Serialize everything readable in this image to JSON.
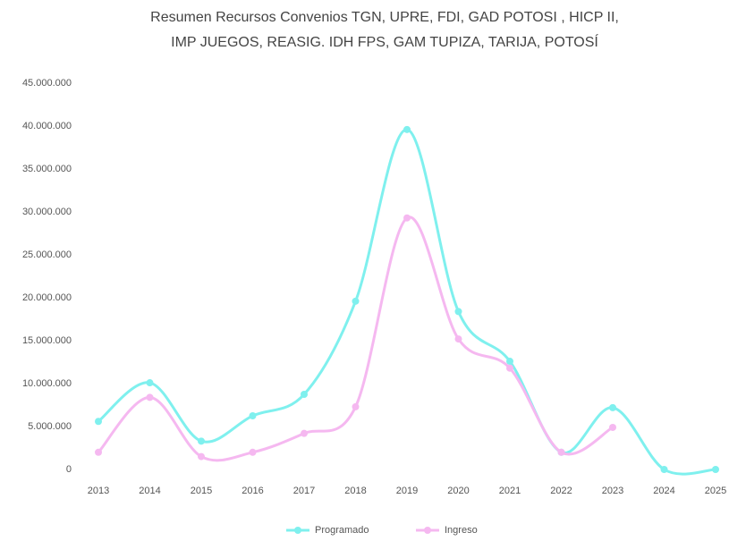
{
  "chart_data": {
    "type": "line",
    "title": [
      "Resumen Recursos Convenios TGN, UPRE, FDI, GAD POTOSI , HICP II,",
      "IMP JUEGOS, REASIG. IDH FPS, GAM TUPIZA, TARIJA, POTOSÍ"
    ],
    "categories": [
      "2013",
      "2014",
      "2015",
      "2016",
      "2017",
      "2018",
      "2019",
      "2020",
      "2021",
      "2022",
      "2023",
      "2024",
      "2025"
    ],
    "series": [
      {
        "name": "Programado",
        "color": "#7ff0ee",
        "values": [
          5600000,
          10100000,
          3300000,
          6250000,
          8750000,
          19600000,
          39600000,
          18400000,
          12600000,
          2000000,
          7200000,
          0,
          0
        ]
      },
      {
        "name": "Ingreso",
        "color": "#f5b8f0",
        "values": [
          2000000,
          8400000,
          1500000,
          2000000,
          4200000,
          7300000,
          29300000,
          15200000,
          11800000,
          2000000,
          4900000,
          null,
          null
        ]
      }
    ],
    "ylim": [
      0,
      45000000
    ],
    "yticks": [
      0,
      {
        "value": 5000000,
        "label": "5.000.000"
      },
      {
        "value": 10000000,
        "label": "10.000.000"
      },
      {
        "value": 15000000,
        "label": "15.000.000"
      },
      {
        "value": 20000000,
        "label": "20.000.000"
      },
      {
        "value": 25000000,
        "label": "25.000.000"
      },
      {
        "value": 30000000,
        "label": "30.000.000"
      },
      {
        "value": 35000000,
        "label": "35.000.000"
      },
      {
        "value": 40000000,
        "label": "40.000.000"
      },
      {
        "value": 45000000,
        "label": "45.000.000"
      }
    ],
    "grid": false,
    "legend": "bottom"
  }
}
